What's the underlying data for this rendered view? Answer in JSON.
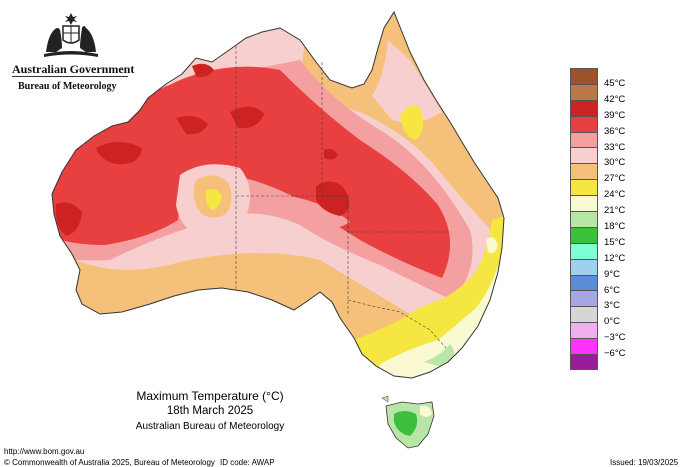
{
  "header": {
    "government": "Australian Government",
    "bureau": "Bureau of Meteorology"
  },
  "caption": {
    "title": "Maximum Temperature (°C)",
    "date": "18th March 2025",
    "source": "Australian Bureau of Meteorology"
  },
  "footer": {
    "url": "http://www.bom.gov.au",
    "copyright": "© Commonwealth of Australia 2025, Bureau of Meteorology",
    "id_code": "ID code: AWAP",
    "issued": "Issued: 19/03/2025"
  },
  "legend": [
    {
      "label": "45°C",
      "color": "#a0522d"
    },
    {
      "label": "42°C",
      "color": "#b97a45"
    },
    {
      "label": "39°C",
      "color": "#cc2222"
    },
    {
      "label": "36°C",
      "color": "#e84040"
    },
    {
      "label": "33°C",
      "color": "#f4a0a0"
    },
    {
      "label": "30°C",
      "color": "#f8cfcf"
    },
    {
      "label": "27°C",
      "color": "#f5c07a"
    },
    {
      "label": "24°C",
      "color": "#f5e642"
    },
    {
      "label": "21°C",
      "color": "#fafad2"
    },
    {
      "label": "18°C",
      "color": "#b7e6a6"
    },
    {
      "label": "15°C",
      "color": "#3cbf3c"
    },
    {
      "label": "12°C",
      "color": "#7fffd4"
    },
    {
      "label": "9°C",
      "color": "#9fd0f0"
    },
    {
      "label": "6°C",
      "color": "#5b8cd8"
    },
    {
      "label": "3°C",
      "color": "#a6a6e6"
    },
    {
      "label": "0°C",
      "color": "#d6d6d6"
    },
    {
      "label": "−3°C",
      "color": "#f0b0f0"
    },
    {
      "label": "−6°C",
      "color": "#ff33ff"
    },
    {
      "label": "",
      "color": "#9b1b9b"
    }
  ],
  "map": {
    "colors": {
      "red": "#e84040",
      "dark_red": "#cc2222",
      "pink": "#f4a0a0",
      "light_pink": "#f8cfcf",
      "orange": "#f5c07a",
      "yellow": "#f5e642",
      "pale_yellow": "#fafad2",
      "green": "#3cbf3c",
      "light_green": "#b7e6a6",
      "border": "#333333"
    }
  }
}
